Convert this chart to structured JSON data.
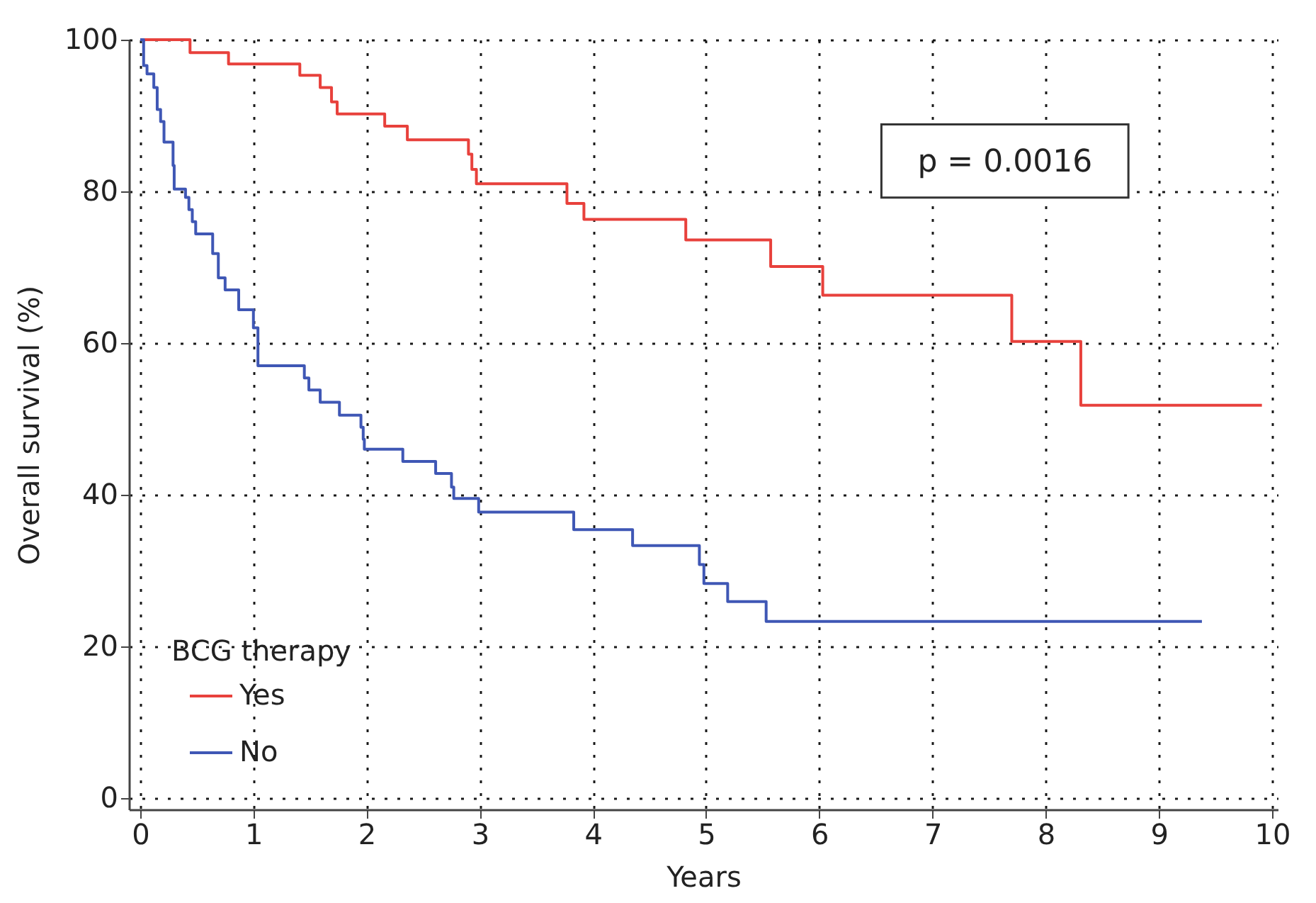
{
  "chart_data": {
    "type": "step",
    "xlabel": "Years",
    "ylabel": "Overall survival (%)",
    "legend_title": "BCG therapy",
    "legend": "bottom left",
    "grid": true,
    "marker": "none",
    "line_style": "solid",
    "xlim": [
      -0.1,
      10.05
    ],
    "ylim": [
      -1.5,
      100
    ],
    "xticks": [
      0,
      1,
      2,
      3,
      4,
      5,
      6,
      7,
      8,
      9,
      10
    ],
    "yticks": [
      0,
      20,
      40,
      60,
      80,
      100
    ],
    "annotations": [
      "p = 0.0016"
    ],
    "series": [
      {
        "name": "Yes",
        "color": "#e8413c",
        "x": [
          0,
          0.44,
          0.78,
          1.41,
          1.59,
          1.69,
          1.74,
          2.16,
          2.36,
          2.9,
          2.93,
          2.97,
          3.77,
          3.92,
          4.82,
          5.57,
          6.03,
          7.7,
          8.31,
          9.91
        ],
        "values": [
          100,
          98.3,
          96.8,
          95.3,
          93.7,
          91.8,
          90.2,
          88.6,
          86.8,
          84.9,
          82.9,
          81,
          78.4,
          76.3,
          73.6,
          70.1,
          66.3,
          60.2,
          51.8,
          51.8
        ]
      },
      {
        "name": "No",
        "color": "#3f57b5",
        "x": [
          0,
          0.03,
          0.06,
          0.12,
          0.15,
          0.18,
          0.21,
          0.29,
          0.3,
          0.4,
          0.43,
          0.46,
          0.49,
          0.64,
          0.69,
          0.75,
          0.87,
          1,
          1.04,
          1.45,
          1.49,
          1.59,
          1.76,
          1.95,
          1.97,
          1.98,
          2.32,
          2.61,
          2.75,
          2.77,
          2.99,
          3.83,
          4.35,
          4.94,
          4.98,
          5.19,
          5.53,
          9.38
        ],
        "values": [
          100,
          96.6,
          95.5,
          93.7,
          90.8,
          89.2,
          86.5,
          83.4,
          80.3,
          79.2,
          77.6,
          76,
          74.4,
          71.8,
          68.6,
          67,
          64.4,
          62,
          57,
          55.4,
          53.8,
          52.2,
          50.5,
          48.9,
          47.3,
          46,
          44.4,
          42.8,
          41,
          39.5,
          37.7,
          35.4,
          33.3,
          30.8,
          28.3,
          25.9,
          23.3,
          23.3
        ]
      }
    ]
  }
}
